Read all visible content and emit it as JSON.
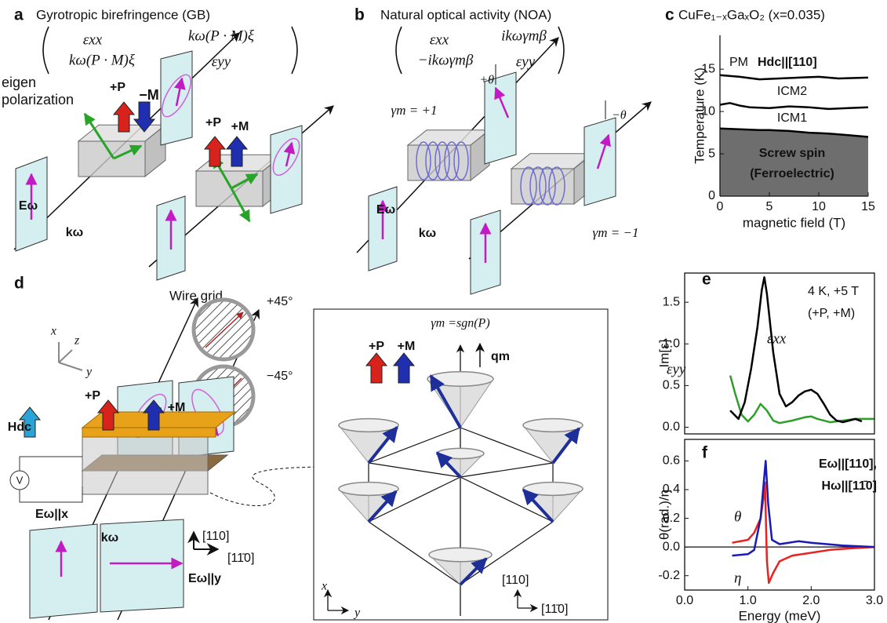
{
  "panel_labels": [
    "a",
    "b",
    "c",
    "d",
    "e",
    "f"
  ],
  "gb": {
    "title": "Gyrotropic birefringence (GB)",
    "matrix": [
      "εxx",
      "kω(P · M)ξ",
      "kω(P · M)ξ",
      "εyy"
    ],
    "eigen": [
      "eigen",
      "polarization"
    ],
    "arrows": [
      "+P",
      "−M",
      "+P",
      "+M"
    ],
    "field": "Eω",
    "wavevector": "kω"
  },
  "noa": {
    "title": "Natural optical activity (NOA)",
    "matrix": [
      "εxx",
      "ikωγmβ",
      "−ikωγmβ",
      "εyy"
    ],
    "rotations": [
      "+θ",
      "−θ"
    ],
    "chirality": [
      "γm = +1",
      "γm = −1"
    ],
    "field": "Eω",
    "wavevector": "kω"
  },
  "setup": {
    "wire_grid": "Wire grid",
    "angles": [
      "+45°",
      "−45°"
    ],
    "axes": [
      "x",
      "z",
      "y"
    ],
    "field": "Hdc",
    "arrows": [
      "+P",
      "+M"
    ],
    "voltmeter": "V",
    "incident": "Eω||x",
    "wavevector": "kω",
    "directions": [
      "[110]",
      "[11̄0]"
    ],
    "outgoing": "Eω||y"
  },
  "spin_model": {
    "relation": "γm =sgn(P)",
    "arrows": [
      "+P",
      "+M"
    ],
    "propagation": "qm",
    "directions": [
      "[110]",
      "[11̄0]"
    ],
    "axes": [
      "x",
      "y"
    ]
  },
  "chart_data": [
    {
      "type": "line",
      "title": "CuFe₁₋ₓGaₓO₂ (x=0.035)",
      "xlabel": "magnetic field (T)",
      "ylabel": "Temperature (K)",
      "xlim": [
        0,
        15
      ],
      "xticks": [
        0,
        5,
        10,
        15
      ],
      "ylim": [
        0,
        19
      ],
      "yticks": [
        0,
        5,
        10,
        15
      ],
      "fill_below": "#6e6e6e",
      "annotations": [
        "PM",
        "Hdc||[110]",
        "ICM2",
        "ICM1",
        "Screw spin",
        "(Ferroelectric)"
      ],
      "series": [
        {
          "color": "#000000",
          "x": [
            0,
            1,
            2,
            3,
            4,
            5,
            6,
            7,
            8,
            9,
            10,
            11,
            12,
            13,
            14,
            15
          ],
          "values": [
            8.0,
            7.95,
            7.9,
            7.85,
            7.8,
            7.8,
            7.75,
            7.7,
            7.6,
            7.5,
            7.45,
            7.4,
            7.3,
            7.2,
            7.1,
            7.0
          ]
        },
        {
          "color": "#000000",
          "x": [
            0,
            1,
            2,
            3,
            5,
            7,
            9,
            11,
            13,
            15
          ],
          "values": [
            10.8,
            11.0,
            10.7,
            10.5,
            10.4,
            10.6,
            10.5,
            10.3,
            10.4,
            10.5
          ]
        },
        {
          "color": "#000000",
          "x": [
            0,
            2,
            4,
            6,
            8,
            10,
            12,
            15
          ],
          "values": [
            14.3,
            14.1,
            13.8,
            13.9,
            14.0,
            14.1,
            13.9,
            14.0
          ]
        }
      ]
    },
    {
      "type": "line",
      "ylabel": "Im[ε]",
      "annotations": [
        "4 K, +5 T",
        "(+P, +M)"
      ],
      "xlim": [
        0,
        3
      ],
      "ylim": [
        -0.08,
        1.85
      ],
      "yticks": [
        {
          "value": 0,
          "label": "0.0"
        },
        0.5,
        {
          "value": 1,
          "label": "1.0"
        },
        1.5
      ],
      "series": [
        {
          "name": "εyy",
          "color": "#2e9e2a",
          "x": [
            0.72,
            0.8,
            0.9,
            1.0,
            1.1,
            1.2,
            1.3,
            1.4,
            1.5,
            1.7,
            1.9,
            2.0,
            2.1,
            2.3,
            2.5,
            2.7,
            3.0
          ],
          "values": [
            0.62,
            0.4,
            0.15,
            0.07,
            0.15,
            0.28,
            0.2,
            0.08,
            0.05,
            0.08,
            0.12,
            0.13,
            0.1,
            0.06,
            0.08,
            0.1,
            0.1
          ]
        },
        {
          "name": "εxx",
          "color": "#000000",
          "x": [
            0.72,
            0.85,
            0.95,
            1.05,
            1.15,
            1.22,
            1.26,
            1.3,
            1.4,
            1.5,
            1.6,
            1.7,
            1.8,
            1.9,
            2.0,
            2.1,
            2.2,
            2.3,
            2.4,
            2.5,
            2.6,
            2.7,
            2.8
          ],
          "values": [
            0.2,
            0.1,
            0.3,
            0.7,
            1.2,
            1.65,
            1.8,
            1.6,
            0.9,
            0.4,
            0.25,
            0.3,
            0.38,
            0.43,
            0.45,
            0.4,
            0.28,
            0.15,
            0.08,
            0.06,
            0.08,
            0.1,
            0.07
          ]
        }
      ]
    },
    {
      "type": "line",
      "xlabel": "Energy (meV)",
      "ylabel": "θ(rad.)/η",
      "annotations": [
        "Eω||[110],",
        "Hω||[11̄0]"
      ],
      "xlim": [
        0,
        3
      ],
      "xticks": [
        {
          "value": 0,
          "label": "0.0"
        },
        {
          "value": 1,
          "label": "1.0"
        },
        {
          "value": 2,
          "label": "2.0"
        },
        {
          "value": 3,
          "label": "3.0"
        }
      ],
      "ylim": [
        -0.3,
        0.75
      ],
      "yticks": [
        -0.2,
        {
          "value": 0,
          "label": "0.0"
        },
        0.2,
        0.4,
        0.6
      ],
      "zero_line": true,
      "series": [
        {
          "name": "θ",
          "color": "#e8231f",
          "x": [
            0.75,
            1.0,
            1.1,
            1.2,
            1.25,
            1.27,
            1.3,
            1.33,
            1.4,
            1.5,
            1.7,
            2.0,
            2.3,
            2.6,
            3.0
          ],
          "values": [
            0.03,
            0.05,
            0.1,
            0.2,
            0.35,
            0.45,
            -0.1,
            -0.25,
            -0.18,
            -0.1,
            -0.06,
            -0.04,
            -0.02,
            -0.01,
            0
          ]
        },
        {
          "name": "η",
          "color": "#1a1ab8",
          "x": [
            0.75,
            1.0,
            1.1,
            1.2,
            1.28,
            1.32,
            1.38,
            1.5,
            1.8,
            2.0,
            2.5,
            3.0
          ],
          "values": [
            -0.06,
            -0.05,
            -0.02,
            0.2,
            0.6,
            0.3,
            0.05,
            0.02,
            0.04,
            0.03,
            0.01,
            0
          ]
        }
      ]
    }
  ]
}
